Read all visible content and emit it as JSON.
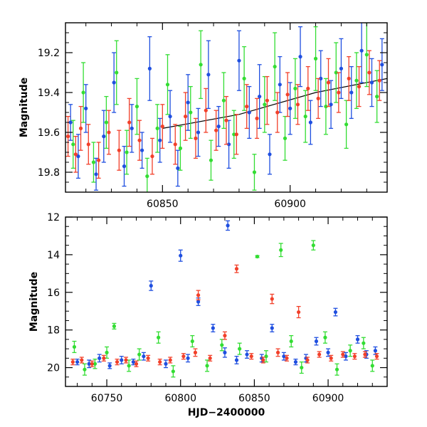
{
  "chart_data": [
    {
      "type": "scatter",
      "panel": "top",
      "title": "",
      "xlabel": "",
      "ylabel": "Magnitude",
      "xlim": [
        60812,
        60938
      ],
      "ylim": [
        19.9,
        19.05
      ],
      "inverted_y": true,
      "x_ticks": [
        60850,
        60900
      ],
      "x_tick_labels": [
        "60850",
        "60900"
      ],
      "y_ticks": [
        19.2,
        19.4,
        19.6,
        19.8
      ],
      "y_tick_labels": [
        "19.2",
        "19.4",
        "19.6",
        "19.8"
      ],
      "grid": false,
      "legend": "none",
      "error_bars": true,
      "trend_curve": {
        "x": [
          60850,
          60880,
          60910,
          60938
        ],
        "y": [
          19.58,
          19.51,
          19.4,
          19.33
        ]
      },
      "series": [
        {
          "color": "#1f4fe0",
          "x": [
            60814,
            60817,
            60820,
            60824,
            60827,
            60831,
            60835,
            60838,
            60842,
            60845,
            60849,
            60853,
            60856,
            60860,
            60864,
            60868,
            60872,
            60876,
            60880,
            60884,
            60888,
            60892,
            60896,
            60900,
            60904,
            60908,
            60912,
            60916,
            60920,
            60924,
            60928,
            60932,
            60936
          ],
          "y": [
            19.55,
            19.72,
            19.48,
            19.81,
            19.62,
            19.35,
            19.77,
            19.58,
            19.69,
            19.28,
            19.64,
            19.52,
            19.78,
            19.45,
            19.6,
            19.31,
            19.57,
            19.66,
            19.24,
            19.5,
            19.42,
            19.71,
            19.36,
            19.48,
            19.22,
            19.55,
            19.33,
            19.46,
            19.28,
            19.4,
            19.19,
            19.35,
            19.26
          ],
          "err": [
            0.09,
            0.11,
            0.12,
            0.08,
            0.13,
            0.15,
            0.1,
            0.12,
            0.09,
            0.16,
            0.11,
            0.13,
            0.09,
            0.14,
            0.12,
            0.17,
            0.1,
            0.12,
            0.15,
            0.13,
            0.16,
            0.1,
            0.14,
            0.13,
            0.15,
            0.11,
            0.14,
            0.12,
            0.15,
            0.13,
            0.16,
            0.12,
            0.13
          ]
        },
        {
          "color": "#33dd33",
          "x": [
            60815,
            60819,
            60823,
            60828,
            60832,
            60836,
            60840,
            60844,
            60848,
            60852,
            60857,
            60861,
            60865,
            60869,
            60874,
            60878,
            60882,
            60886,
            60890,
            60894,
            60898,
            60902,
            60906,
            60910,
            60914,
            60918,
            60922,
            60926,
            60930,
            60934
          ],
          "y": [
            19.66,
            19.4,
            19.75,
            19.55,
            19.3,
            19.7,
            19.47,
            19.82,
            19.58,
            19.36,
            19.68,
            19.5,
            19.26,
            19.74,
            19.44,
            19.61,
            19.33,
            19.8,
            19.46,
            19.27,
            19.63,
            19.38,
            19.52,
            19.23,
            19.47,
            19.3,
            19.56,
            19.34,
            19.21,
            19.42
          ],
          "err": [
            0.12,
            0.15,
            0.1,
            0.13,
            0.16,
            0.11,
            0.14,
            0.09,
            0.12,
            0.15,
            0.11,
            0.13,
            0.17,
            0.1,
            0.14,
            0.12,
            0.16,
            0.09,
            0.14,
            0.17,
            0.11,
            0.15,
            0.13,
            0.16,
            0.14,
            0.15,
            0.12,
            0.14,
            0.16,
            0.13
          ]
        },
        {
          "color": "#f2402a",
          "x": [
            60813,
            60816,
            60818,
            60821,
            60825,
            60829,
            60833,
            60837,
            60841,
            60846,
            60850,
            60855,
            60859,
            60863,
            60867,
            60871,
            60875,
            60879,
            60883,
            60887,
            60891,
            60895,
            60899,
            60903,
            60907,
            60911,
            60915,
            60919,
            60923,
            60927,
            60931,
            60935
          ],
          "y": [
            19.62,
            19.71,
            19.58,
            19.66,
            19.74,
            19.6,
            19.69,
            19.55,
            19.64,
            19.72,
            19.57,
            19.66,
            19.52,
            19.63,
            19.49,
            19.59,
            19.54,
            19.61,
            19.47,
            19.53,
            19.44,
            19.5,
            19.41,
            19.46,
            19.38,
            19.43,
            19.35,
            19.4,
            19.33,
            19.37,
            19.3,
            19.34
          ],
          "err": [
            0.1,
            0.09,
            0.11,
            0.1,
            0.09,
            0.11,
            0.1,
            0.12,
            0.1,
            0.09,
            0.11,
            0.1,
            0.12,
            0.1,
            0.11,
            0.1,
            0.12,
            0.1,
            0.11,
            0.1,
            0.12,
            0.1,
            0.11,
            0.1,
            0.11,
            0.1,
            0.12,
            0.1,
            0.11,
            0.1,
            0.11,
            0.1
          ]
        }
      ]
    },
    {
      "type": "scatter",
      "panel": "bottom",
      "title": "",
      "xlabel": "HJD−2400000",
      "ylabel": "Magnitude",
      "xlim": [
        60722,
        60940
      ],
      "ylim": [
        21.0,
        12.0
      ],
      "inverted_y": true,
      "x_ticks": [
        60750,
        60800,
        60850,
        60900
      ],
      "x_tick_labels": [
        "60750",
        "60800",
        "60850",
        "60900"
      ],
      "y_ticks": [
        12,
        14,
        16,
        18,
        20
      ],
      "y_tick_labels": [
        "12",
        "14",
        "16",
        "18",
        "20"
      ],
      "grid": false,
      "legend": "none",
      "error_bars": true,
      "series": [
        {
          "color": "#1f4fe0",
          "x": [
            60730,
            60738,
            60745,
            60752,
            60760,
            60768,
            60775,
            60780,
            60790,
            60800,
            60805,
            60812,
            60822,
            60830,
            60832,
            60838,
            60845,
            60855,
            60862,
            60870,
            60878,
            60885,
            60892,
            60900,
            60905,
            60912,
            60920,
            60926,
            60932
          ],
          "y": [
            19.7,
            19.8,
            19.5,
            19.9,
            19.6,
            19.7,
            19.4,
            15.65,
            19.8,
            14.05,
            19.5,
            16.5,
            17.9,
            19.2,
            12.45,
            19.6,
            19.3,
            19.5,
            17.9,
            19.4,
            19.7,
            19.5,
            18.6,
            19.2,
            17.05,
            19.4,
            18.5,
            19.3,
            19.1
          ],
          "err": [
            0.15,
            0.2,
            0.2,
            0.15,
            0.2,
            0.15,
            0.2,
            0.25,
            0.2,
            0.3,
            0.2,
            0.2,
            0.2,
            0.25,
            0.25,
            0.2,
            0.2,
            0.2,
            0.2,
            0.2,
            0.15,
            0.2,
            0.2,
            0.2,
            0.2,
            0.2,
            0.2,
            0.2,
            0.2
          ]
        },
        {
          "color": "#33dd33",
          "x": [
            60728,
            60735,
            60742,
            60750,
            60755,
            60765,
            60772,
            60785,
            60795,
            60808,
            60818,
            60828,
            60840,
            60852,
            60858,
            60868,
            60875,
            60882,
            60890,
            60898,
            60906,
            60915,
            60924,
            60930
          ],
          "y": [
            18.9,
            20.1,
            19.8,
            19.2,
            17.8,
            19.9,
            19.3,
            18.4,
            20.2,
            18.6,
            19.9,
            18.8,
            19.0,
            14.1,
            19.4,
            13.75,
            18.6,
            20.0,
            13.5,
            18.4,
            20.1,
            19.1,
            18.7,
            19.9
          ],
          "err": [
            0.3,
            0.3,
            0.25,
            0.3,
            0.15,
            0.3,
            0.3,
            0.3,
            0.3,
            0.3,
            0.3,
            0.3,
            0.3,
            0.05,
            0.3,
            0.35,
            0.3,
            0.3,
            0.25,
            0.3,
            0.3,
            0.3,
            0.3,
            0.3
          ]
        },
        {
          "color": "#f2402a",
          "x": [
            60727,
            60733,
            60740,
            60748,
            60757,
            60763,
            60770,
            60778,
            60786,
            60793,
            60802,
            60810,
            60812,
            60820,
            60830,
            60838,
            60848,
            60856,
            60862,
            60866,
            60872,
            60880,
            60886,
            60894,
            60902,
            60910,
            60918,
            60925,
            60933
          ],
          "y": [
            19.7,
            19.6,
            19.8,
            19.5,
            19.7,
            19.6,
            19.8,
            19.5,
            19.7,
            19.6,
            19.4,
            19.2,
            16.15,
            19.5,
            18.3,
            14.75,
            19.4,
            19.6,
            16.35,
            19.2,
            19.5,
            17.05,
            19.6,
            19.3,
            19.5,
            19.3,
            19.4,
            19.3,
            19.4
          ],
          "err": [
            0.15,
            0.15,
            0.15,
            0.15,
            0.15,
            0.15,
            0.15,
            0.15,
            0.15,
            0.15,
            0.15,
            0.2,
            0.25,
            0.15,
            0.2,
            0.2,
            0.15,
            0.15,
            0.25,
            0.2,
            0.15,
            0.3,
            0.15,
            0.15,
            0.15,
            0.15,
            0.15,
            0.15,
            0.15
          ]
        }
      ]
    }
  ]
}
